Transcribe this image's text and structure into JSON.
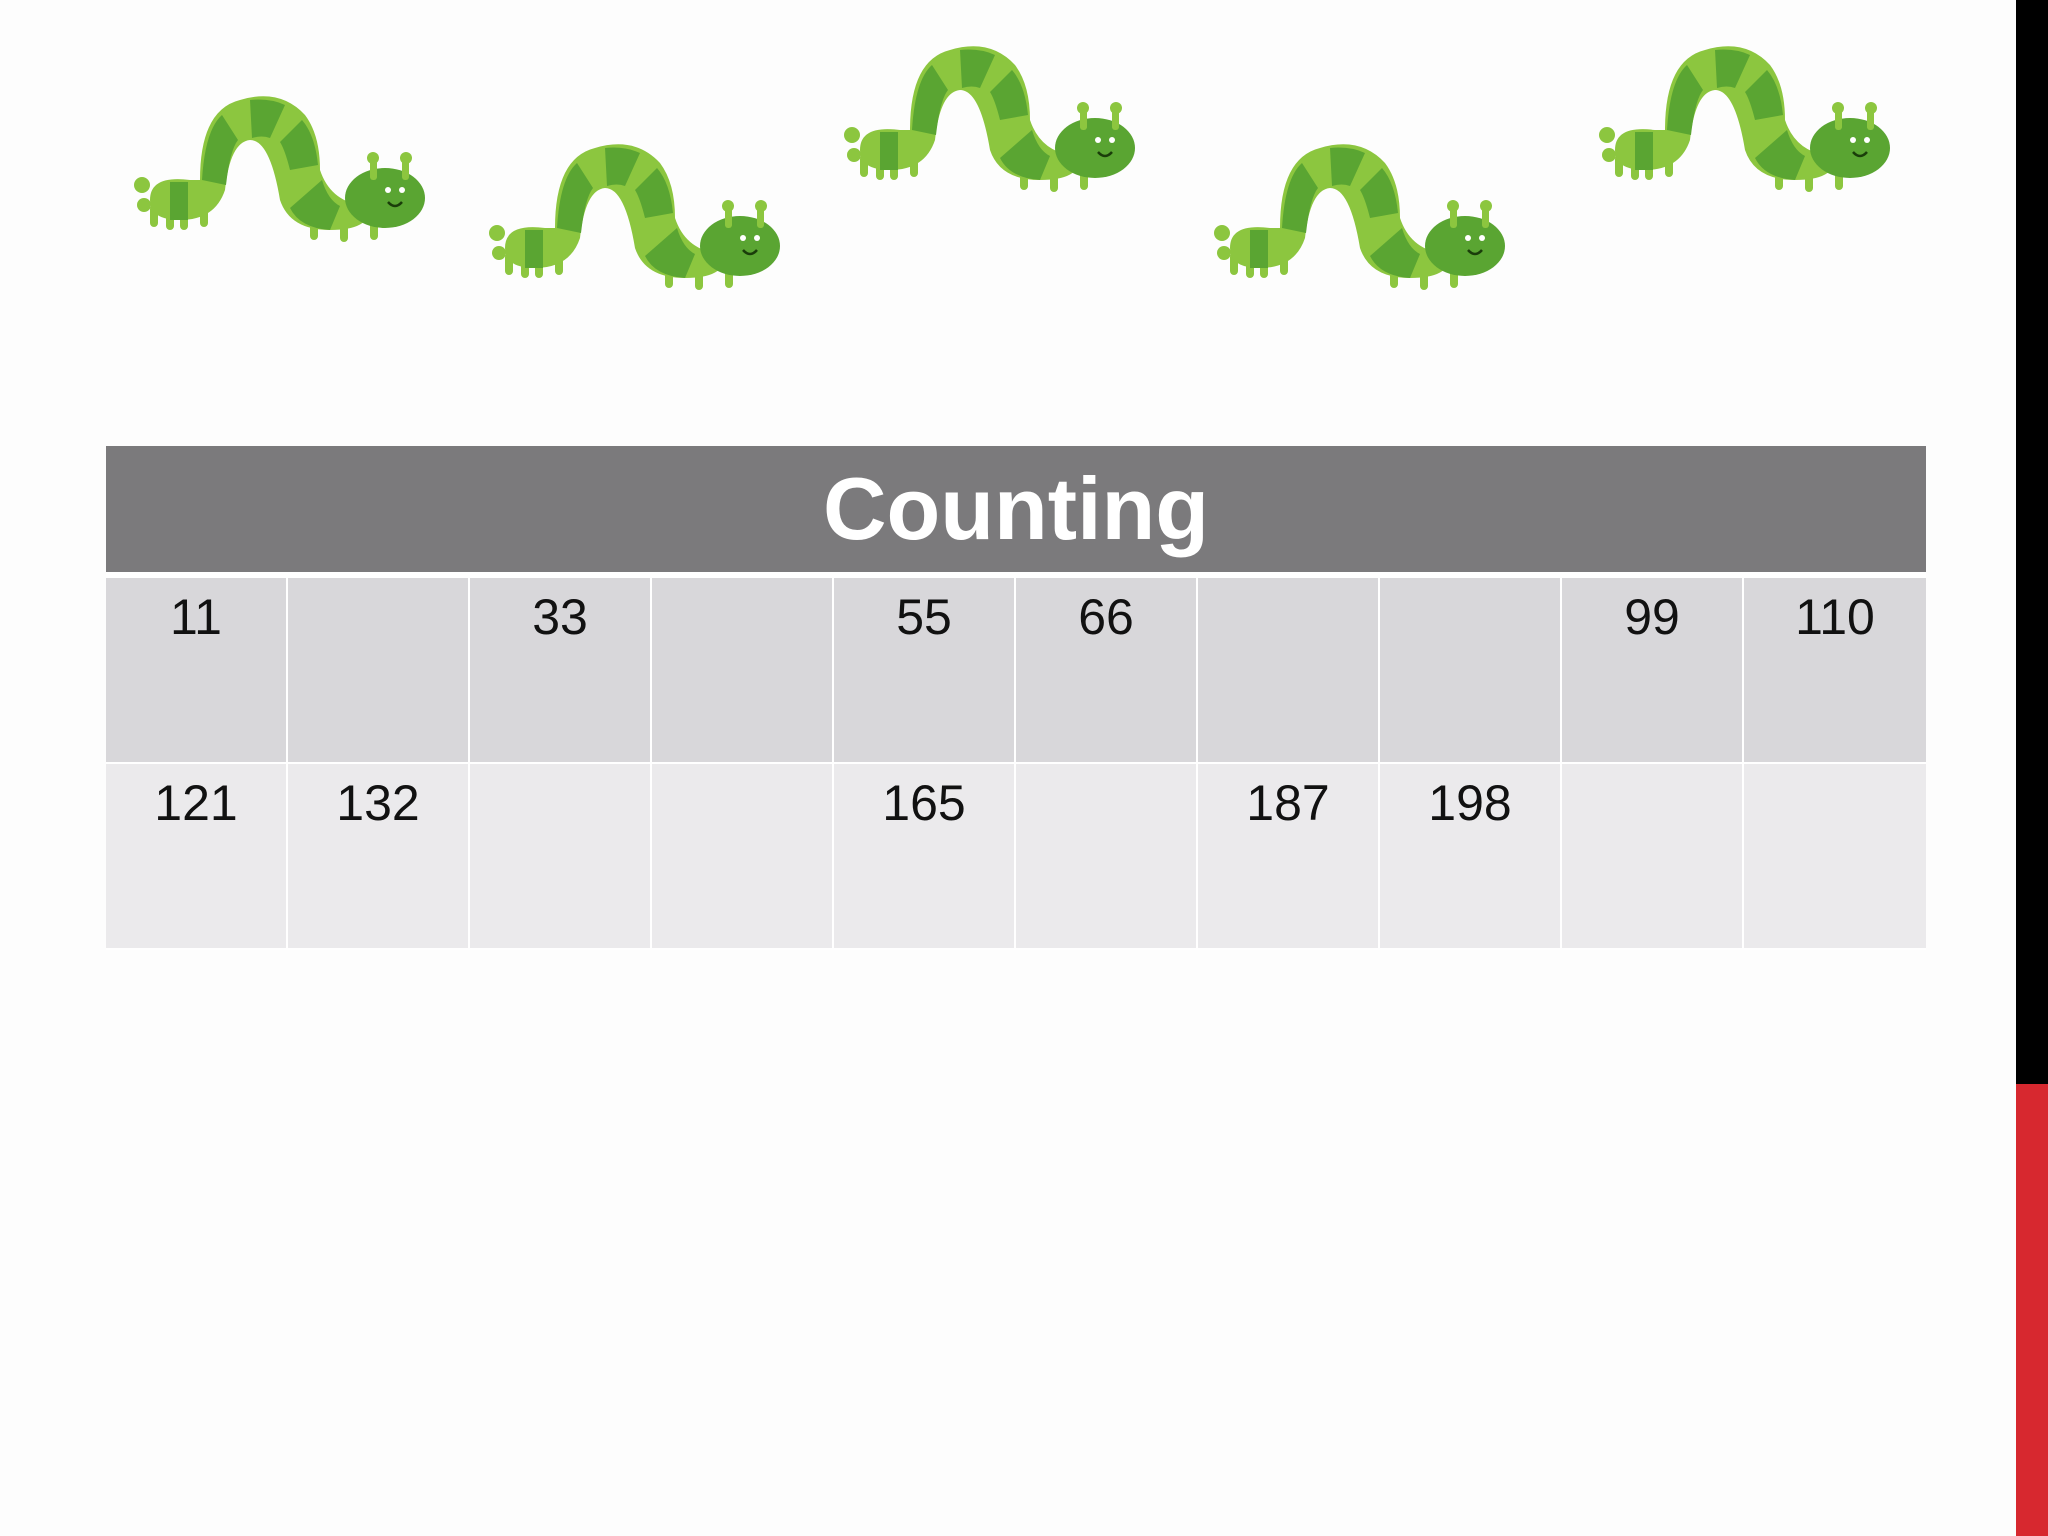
{
  "slide": {
    "table": {
      "header": "Counting",
      "rows": [
        [
          "11",
          "",
          "33",
          "",
          "55",
          "66",
          "",
          "",
          "99",
          "110"
        ],
        [
          "121",
          "132",
          "",
          "",
          "165",
          "",
          "187",
          "198",
          "",
          ""
        ]
      ]
    },
    "decorations": {
      "caterpillar_count": 5,
      "caterpillar_colors": {
        "light": "#8cc63f",
        "dark": "#5aa532"
      }
    },
    "accent_colors": {
      "header_bg": "#7b7a7c",
      "right_bar_top": "#000000",
      "right_bar_bottom": "#d7282f"
    }
  }
}
